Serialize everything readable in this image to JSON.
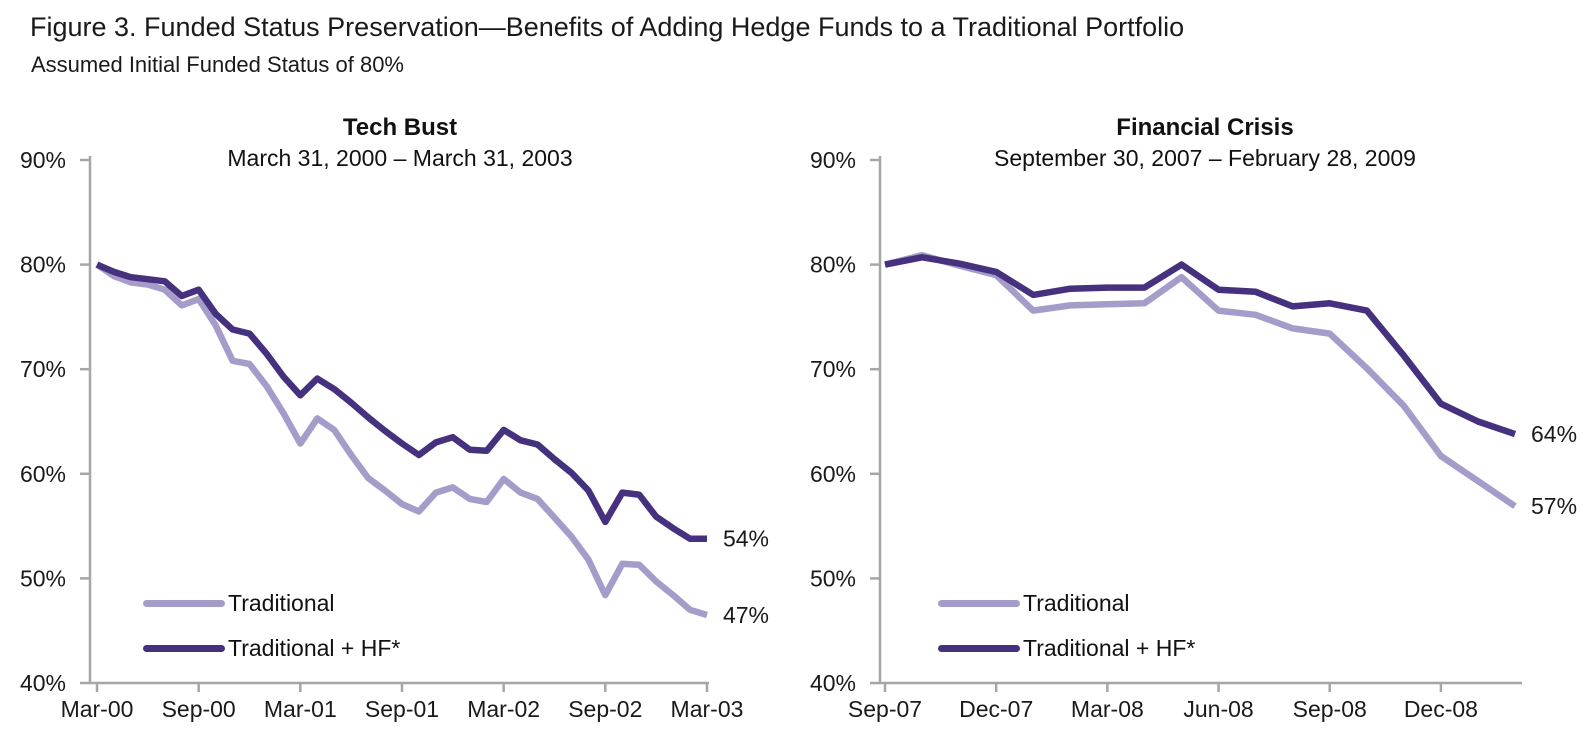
{
  "figure": {
    "title": "Figure 3. Funded Status Preservation—Benefits of Adding Hedge Funds to a Traditional Portfolio",
    "subtitle": "Assumed Initial Funded Status of 80%"
  },
  "colors": {
    "traditional": "#a69cca",
    "traditional_hf": "#46317e",
    "axis": "#a6a6a6",
    "tick_text": "#1a1a1a"
  },
  "legend": {
    "traditional_label": "Traditional",
    "traditional_hf_label": "Traditional + HF*"
  },
  "chart_data": [
    {
      "id": "tech-bust",
      "type": "line",
      "title": "Tech Bust",
      "subtitle": "March 31, 2000 – March 31, 2003",
      "frequency": "monthly",
      "ylim": [
        40,
        90
      ],
      "y_tick_labels": [
        "90%",
        "80%",
        "70%",
        "60%",
        "50%",
        "40%"
      ],
      "x_tick_labels": [
        "Mar-00",
        "Sep-00",
        "Mar-01",
        "Sep-01",
        "Mar-02",
        "Sep-02",
        "Mar-03"
      ],
      "x_tick_interval_months": 6,
      "x_months": [
        "Mar-00",
        "Apr-00",
        "May-00",
        "Jun-00",
        "Jul-00",
        "Aug-00",
        "Sep-00",
        "Oct-00",
        "Nov-00",
        "Dec-00",
        "Jan-01",
        "Feb-01",
        "Mar-01",
        "Apr-01",
        "May-01",
        "Jun-01",
        "Jul-01",
        "Aug-01",
        "Sep-01",
        "Oct-01",
        "Nov-01",
        "Dec-01",
        "Jan-02",
        "Feb-02",
        "Mar-02",
        "Apr-02",
        "May-02",
        "Jun-02",
        "Jul-02",
        "Aug-02",
        "Sep-02",
        "Oct-02",
        "Nov-02",
        "Dec-02",
        "Jan-03",
        "Feb-03",
        "Mar-03"
      ],
      "series": [
        {
          "name": "Traditional",
          "color_key": "traditional",
          "values": [
            80.0,
            78.9,
            78.3,
            78.1,
            77.6,
            76.1,
            76.7,
            74.2,
            70.8,
            70.5,
            68.4,
            65.8,
            62.9,
            65.3,
            64.2,
            61.8,
            59.6,
            58.4,
            57.1,
            56.4,
            58.2,
            58.7,
            57.6,
            57.3,
            59.5,
            58.2,
            57.6,
            55.8,
            54.0,
            51.8,
            48.4,
            51.4,
            51.3,
            49.7,
            48.4,
            47.0,
            46.5
          ],
          "end_label": "47%"
        },
        {
          "name": "Traditional + HF*",
          "color_key": "traditional_hf",
          "values": [
            80.0,
            79.3,
            78.8,
            78.6,
            78.4,
            77.0,
            77.6,
            75.3,
            73.8,
            73.4,
            71.5,
            69.3,
            67.5,
            69.1,
            68.1,
            66.8,
            65.4,
            64.1,
            62.9,
            61.8,
            63.0,
            63.5,
            62.3,
            62.2,
            64.2,
            63.2,
            62.8,
            61.4,
            60.1,
            58.4,
            55.4,
            58.2,
            58.0,
            55.9,
            54.8,
            53.8,
            53.8
          ],
          "end_label": "54%"
        }
      ]
    },
    {
      "id": "financial-crisis",
      "type": "line",
      "title": "Financial Crisis",
      "subtitle": "September 30, 2007 – February 28, 2009",
      "frequency": "monthly",
      "ylim": [
        40,
        90
      ],
      "y_tick_labels": [
        "90%",
        "80%",
        "70%",
        "60%",
        "50%",
        "40%"
      ],
      "x_tick_labels": [
        "Sep-07",
        "Dec-07",
        "Mar-08",
        "Jun-08",
        "Sep-08",
        "Dec-08"
      ],
      "x_tick_interval_months": 3,
      "x_months": [
        "Sep-07",
        "Oct-07",
        "Nov-07",
        "Dec-07",
        "Jan-08",
        "Feb-08",
        "Mar-08",
        "Apr-08",
        "May-08",
        "Jun-08",
        "Jul-08",
        "Aug-08",
        "Sep-08",
        "Oct-08",
        "Nov-08",
        "Dec-08",
        "Jan-09",
        "Feb-09"
      ],
      "series": [
        {
          "name": "Traditional",
          "color_key": "traditional",
          "values": [
            80.0,
            80.9,
            79.9,
            79.0,
            75.6,
            76.1,
            76.2,
            76.3,
            78.8,
            75.6,
            75.2,
            73.9,
            73.4,
            70.1,
            66.5,
            61.7,
            59.3,
            56.9
          ],
          "end_label": "57%"
        },
        {
          "name": "Traditional + HF*",
          "color_key": "traditional_hf",
          "values": [
            80.0,
            80.7,
            80.1,
            79.3,
            77.1,
            77.7,
            77.8,
            77.8,
            80.0,
            77.6,
            77.4,
            76.0,
            76.3,
            75.6,
            71.3,
            66.7,
            65.0,
            63.8
          ],
          "end_label": "64%"
        }
      ]
    }
  ]
}
